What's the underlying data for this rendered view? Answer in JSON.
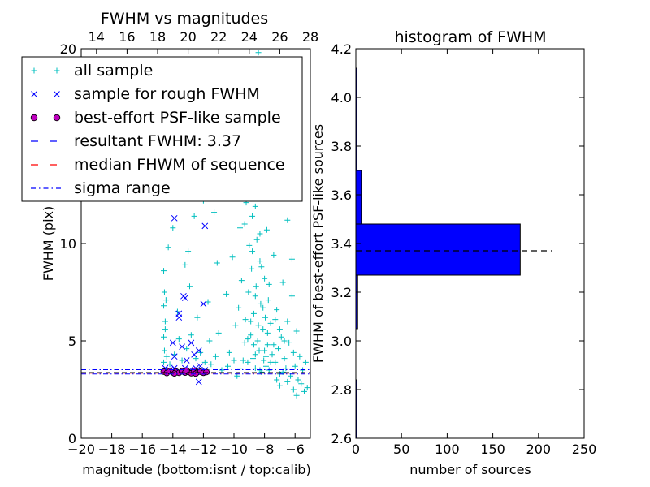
{
  "chart_data": [
    {
      "type": "scatter",
      "title": "FWHM vs magnitudes",
      "xlabel": "magnitude (bottom:isnt / top:calib)",
      "ylabel": "FWHM (pix)",
      "xlim": [
        -20,
        -5
      ],
      "ylim": [
        0,
        20
      ],
      "x_ticks": [
        -20,
        -18,
        -16,
        -14,
        -12,
        -10,
        -8,
        -6
      ],
      "y_ticks": [
        0,
        5,
        10
      ],
      "top_xlim": [
        13,
        28
      ],
      "top_x_ticks": [
        14,
        16,
        18,
        20,
        22,
        24,
        26,
        28
      ],
      "top_y_tick": "20",
      "legend": {
        "position": "top-left",
        "entries": [
          {
            "label": "all sample",
            "marker": "+",
            "color": "#00bfbf"
          },
          {
            "label": "sample for rough FWHM",
            "marker": "x",
            "color": "#0000ff"
          },
          {
            "label": "best-effort PSF-like sample",
            "marker": "o",
            "color": "#bf00bf"
          },
          {
            "label": "resultant FWHM: 3.37",
            "marker": "dashed",
            "color": "#0000ff"
          },
          {
            "label": "median FHWM of sequence",
            "marker": "dashed",
            "color": "#ff0000"
          },
          {
            "label": "sigma range",
            "marker": "dashdot",
            "color": "#0000ff"
          }
        ]
      },
      "resultant_fwhm": 3.37,
      "sigma_range": [
        3.3,
        3.52
      ],
      "series": [
        {
          "marker": "+",
          "color": "#00bfbf",
          "points": [
            [
              -14.6,
              3.9
            ],
            [
              -14.55,
              4.5
            ],
            [
              -14.6,
              5.2
            ],
            [
              -14.5,
              6.0
            ],
            [
              -14.6,
              6.8
            ],
            [
              -14.55,
              7.5
            ],
            [
              -14.6,
              8.6
            ],
            [
              -14.4,
              4.2
            ],
            [
              -14.5,
              5.6
            ],
            [
              -14.45,
              7.1
            ],
            [
              -14.3,
              9.8
            ],
            [
              -14.2,
              3.8
            ],
            [
              -13.9,
              4.3
            ],
            [
              -13.6,
              5.1
            ],
            [
              -13.4,
              4.0
            ],
            [
              -13.1,
              4.6
            ],
            [
              -12.8,
              5.3
            ],
            [
              -12.5,
              4.1
            ],
            [
              -12.2,
              4.4
            ],
            [
              -11.9,
              3.9
            ],
            [
              -13.7,
              6.5
            ],
            [
              -12.9,
              7.8
            ],
            [
              -12.4,
              6.2
            ],
            [
              -13.2,
              8.9
            ],
            [
              -14.0,
              10.8
            ],
            [
              -12.0,
              12.2
            ],
            [
              -13.8,
              12.7
            ],
            [
              -11.8,
              13.3
            ],
            [
              -14.7,
              12.6
            ],
            [
              -12.6,
              11.4
            ],
            [
              -13.0,
              9.6
            ],
            [
              -11.7,
              7.0
            ],
            [
              -11.6,
              5.0
            ],
            [
              -11.5,
              3.8
            ],
            [
              -11.3,
              11.6
            ],
            [
              -11.2,
              4.2
            ],
            [
              -11.0,
              5.4
            ],
            [
              -10.8,
              14.1
            ],
            [
              -10.5,
              7.4
            ],
            [
              -10.3,
              4.4
            ],
            [
              -10.1,
              9.3
            ],
            [
              -10.0,
              12.6
            ],
            [
              -9.9,
              5.8
            ],
            [
              -9.8,
              3.2
            ],
            [
              -9.7,
              6.7
            ],
            [
              -9.6,
              10.8
            ],
            [
              -9.5,
              8.1
            ],
            [
              -9.4,
              14.5
            ],
            [
              -9.3,
              4.9
            ],
            [
              -9.25,
              6.1
            ],
            [
              -9.2,
              12.1
            ],
            [
              -9.1,
              3.9
            ],
            [
              -9.05,
              7.5
            ],
            [
              -9.0,
              9.9
            ],
            [
              -8.95,
              16.2
            ],
            [
              -8.9,
              5.3
            ],
            [
              -8.85,
              8.7
            ],
            [
              -8.8,
              11.4
            ],
            [
              -8.75,
              4.1
            ],
            [
              -8.7,
              6.4
            ],
            [
              -8.65,
              13.3
            ],
            [
              -8.6,
              3.6
            ],
            [
              -8.55,
              7.8
            ],
            [
              -8.5,
              10.2
            ],
            [
              -8.45,
              5.0
            ],
            [
              -8.4,
              19.8
            ],
            [
              -8.35,
              4.5
            ],
            [
              -8.3,
              9.1
            ],
            [
              -8.25,
              6.9
            ],
            [
              -8.2,
              3.4
            ],
            [
              -8.15,
              12.8
            ],
            [
              -8.1,
              5.6
            ],
            [
              -8.05,
              4.0
            ],
            [
              -8.0,
              8.2
            ],
            [
              -7.95,
              6.2
            ],
            [
              -7.9,
              3.7
            ],
            [
              -7.85,
              10.7
            ],
            [
              -7.8,
              4.8
            ],
            [
              -7.75,
              7.1
            ],
            [
              -7.7,
              3.5
            ],
            [
              -7.6,
              5.9
            ],
            [
              -7.5,
              4.3
            ],
            [
              -7.4,
              9.4
            ],
            [
              -7.3,
              3.9
            ],
            [
              -7.2,
              6.6
            ],
            [
              -7.1,
              4.6
            ],
            [
              -7.0,
              3.3
            ],
            [
              -6.9,
              5.2
            ],
            [
              -6.8,
              8.0
            ],
            [
              -6.7,
              4.1
            ],
            [
              -6.6,
              3.6
            ],
            [
              -6.5,
              6.0
            ],
            [
              -6.4,
              4.9
            ],
            [
              -6.3,
              3.2
            ],
            [
              -6.2,
              7.3
            ],
            [
              -6.1,
              4.4
            ],
            [
              -6.0,
              3.7
            ],
            [
              -5.9,
              5.5
            ],
            [
              -5.8,
              3.0
            ],
            [
              -5.7,
              4.2
            ],
            [
              -5.6,
              2.8
            ],
            [
              -5.5,
              3.5
            ],
            [
              -5.4,
              2.4
            ],
            [
              -5.3,
              3.9
            ],
            [
              -5.2,
              2.6
            ],
            [
              -8.6,
              11.9
            ],
            [
              -8.9,
              13.8
            ],
            [
              -9.2,
              15.4
            ],
            [
              -8.4,
              14.7
            ],
            [
              -8.7,
              17.1
            ],
            [
              -9.0,
              18.2
            ],
            [
              -8.2,
              16.6
            ],
            [
              -8.5,
              13.0
            ],
            [
              -8.8,
              9.6
            ],
            [
              -9.3,
              11.0
            ],
            [
              -8.3,
              10.5
            ],
            [
              -8.6,
              7.3
            ],
            [
              -8.1,
              6.7
            ],
            [
              -8.4,
              5.8
            ],
            [
              -8.9,
              6.0
            ],
            [
              -9.1,
              5.1
            ],
            [
              -7.8,
              5.4
            ],
            [
              -8.0,
              4.5
            ],
            [
              -8.7,
              4.8
            ],
            [
              -9.4,
              4.0
            ],
            [
              -7.6,
              3.9
            ],
            [
              -8.3,
              3.5
            ],
            [
              -7.4,
              4.8
            ],
            [
              -7.9,
              4.2
            ],
            [
              -8.6,
              4.3
            ],
            [
              -9.6,
              3.6
            ],
            [
              -10.0,
              4.0
            ],
            [
              -10.4,
              3.7
            ],
            [
              -10.8,
              3.5
            ],
            [
              -7.2,
              3.0
            ],
            [
              -6.8,
              3.4
            ],
            [
              -7.0,
              2.7
            ],
            [
              -6.5,
              2.9
            ],
            [
              -6.1,
              2.5
            ],
            [
              -5.9,
              2.2
            ],
            [
              -8.2,
              8.8
            ],
            [
              -7.7,
              7.9
            ],
            [
              -7.3,
              6.1
            ],
            [
              -7.0,
              5.6
            ],
            [
              -6.7,
              5.0
            ],
            [
              -9.8,
              17.2
            ],
            [
              -8.0,
              18.9
            ],
            [
              -9.5,
              16.0
            ],
            [
              -7.5,
              14.4
            ],
            [
              -10.2,
              15.2
            ],
            [
              -6.9,
              12.9
            ],
            [
              -6.5,
              11.2
            ],
            [
              -7.1,
              17.6
            ],
            [
              -6.2,
              9.2
            ],
            [
              -10.6,
              13.7
            ],
            [
              -11.1,
              9.0
            ]
          ]
        },
        {
          "marker": "x",
          "color": "#0000ff",
          "points": [
            [
              -14.5,
              3.6
            ],
            [
              -14.2,
              3.5
            ],
            [
              -13.9,
              3.6
            ],
            [
              -13.5,
              3.4
            ],
            [
              -13.2,
              3.6
            ],
            [
              -12.9,
              3.5
            ],
            [
              -12.5,
              3.6
            ],
            [
              -12.2,
              3.7
            ],
            [
              -11.9,
              3.5
            ],
            [
              -12.3,
              2.9
            ],
            [
              -13.4,
              4.7
            ],
            [
              -12.8,
              4.9
            ],
            [
              -12.3,
              4.5
            ],
            [
              -13.9,
              4.2
            ],
            [
              -13.6,
              6.4
            ],
            [
              -13.3,
              7.3
            ],
            [
              -13.2,
              7.2
            ],
            [
              -12.0,
              6.9
            ],
            [
              -13.6,
              6.2
            ],
            [
              -13.9,
              11.3
            ],
            [
              -11.9,
              10.9
            ],
            [
              -14.0,
              4.9
            ],
            [
              -13.1,
              4.0
            ],
            [
              -12.6,
              4.3
            ]
          ]
        },
        {
          "marker": "o",
          "color": "#bf00bf",
          "points": [
            [
              -14.6,
              3.42
            ],
            [
              -14.4,
              3.35
            ],
            [
              -14.2,
              3.45
            ],
            [
              -14.0,
              3.38
            ],
            [
              -13.8,
              3.43
            ],
            [
              -13.6,
              3.36
            ],
            [
              -13.4,
              3.44
            ],
            [
              -13.2,
              3.37
            ],
            [
              -13.0,
              3.41
            ],
            [
              -12.8,
              3.34
            ],
            [
              -12.6,
              3.46
            ],
            [
              -12.4,
              3.39
            ],
            [
              -12.2,
              3.42
            ],
            [
              -12.0,
              3.36
            ],
            [
              -11.8,
              3.4
            ],
            [
              -13.9,
              3.33
            ],
            [
              -13.1,
              3.47
            ],
            [
              -12.5,
              3.32
            ]
          ]
        }
      ]
    },
    {
      "type": "bar",
      "orientation": "horizontal",
      "title": "histogram of FWHM",
      "xlabel": "number of sources",
      "ylabel": "FWHM of best-effort PSF-like sources",
      "xlim": [
        0,
        250
      ],
      "ylim": [
        2.6,
        4.2
      ],
      "x_ticks": [
        0,
        50,
        100,
        150,
        200,
        250
      ],
      "y_ticks": [
        2.6,
        2.8,
        3.0,
        3.2,
        3.4,
        3.6,
        3.8,
        4.0,
        4.2
      ],
      "bins": [
        {
          "from": 2.6,
          "to": 2.84,
          "count": 1
        },
        {
          "from": 3.05,
          "to": 3.27,
          "count": 2
        },
        {
          "from": 3.27,
          "to": 3.48,
          "count": 180
        },
        {
          "from": 3.48,
          "to": 3.7,
          "count": 6
        },
        {
          "from": 3.7,
          "to": 4.12,
          "count": 1
        }
      ],
      "bar_color": "#0000ff",
      "resultant_fwhm": 3.37,
      "resultant_line_xmax": 215
    }
  ]
}
